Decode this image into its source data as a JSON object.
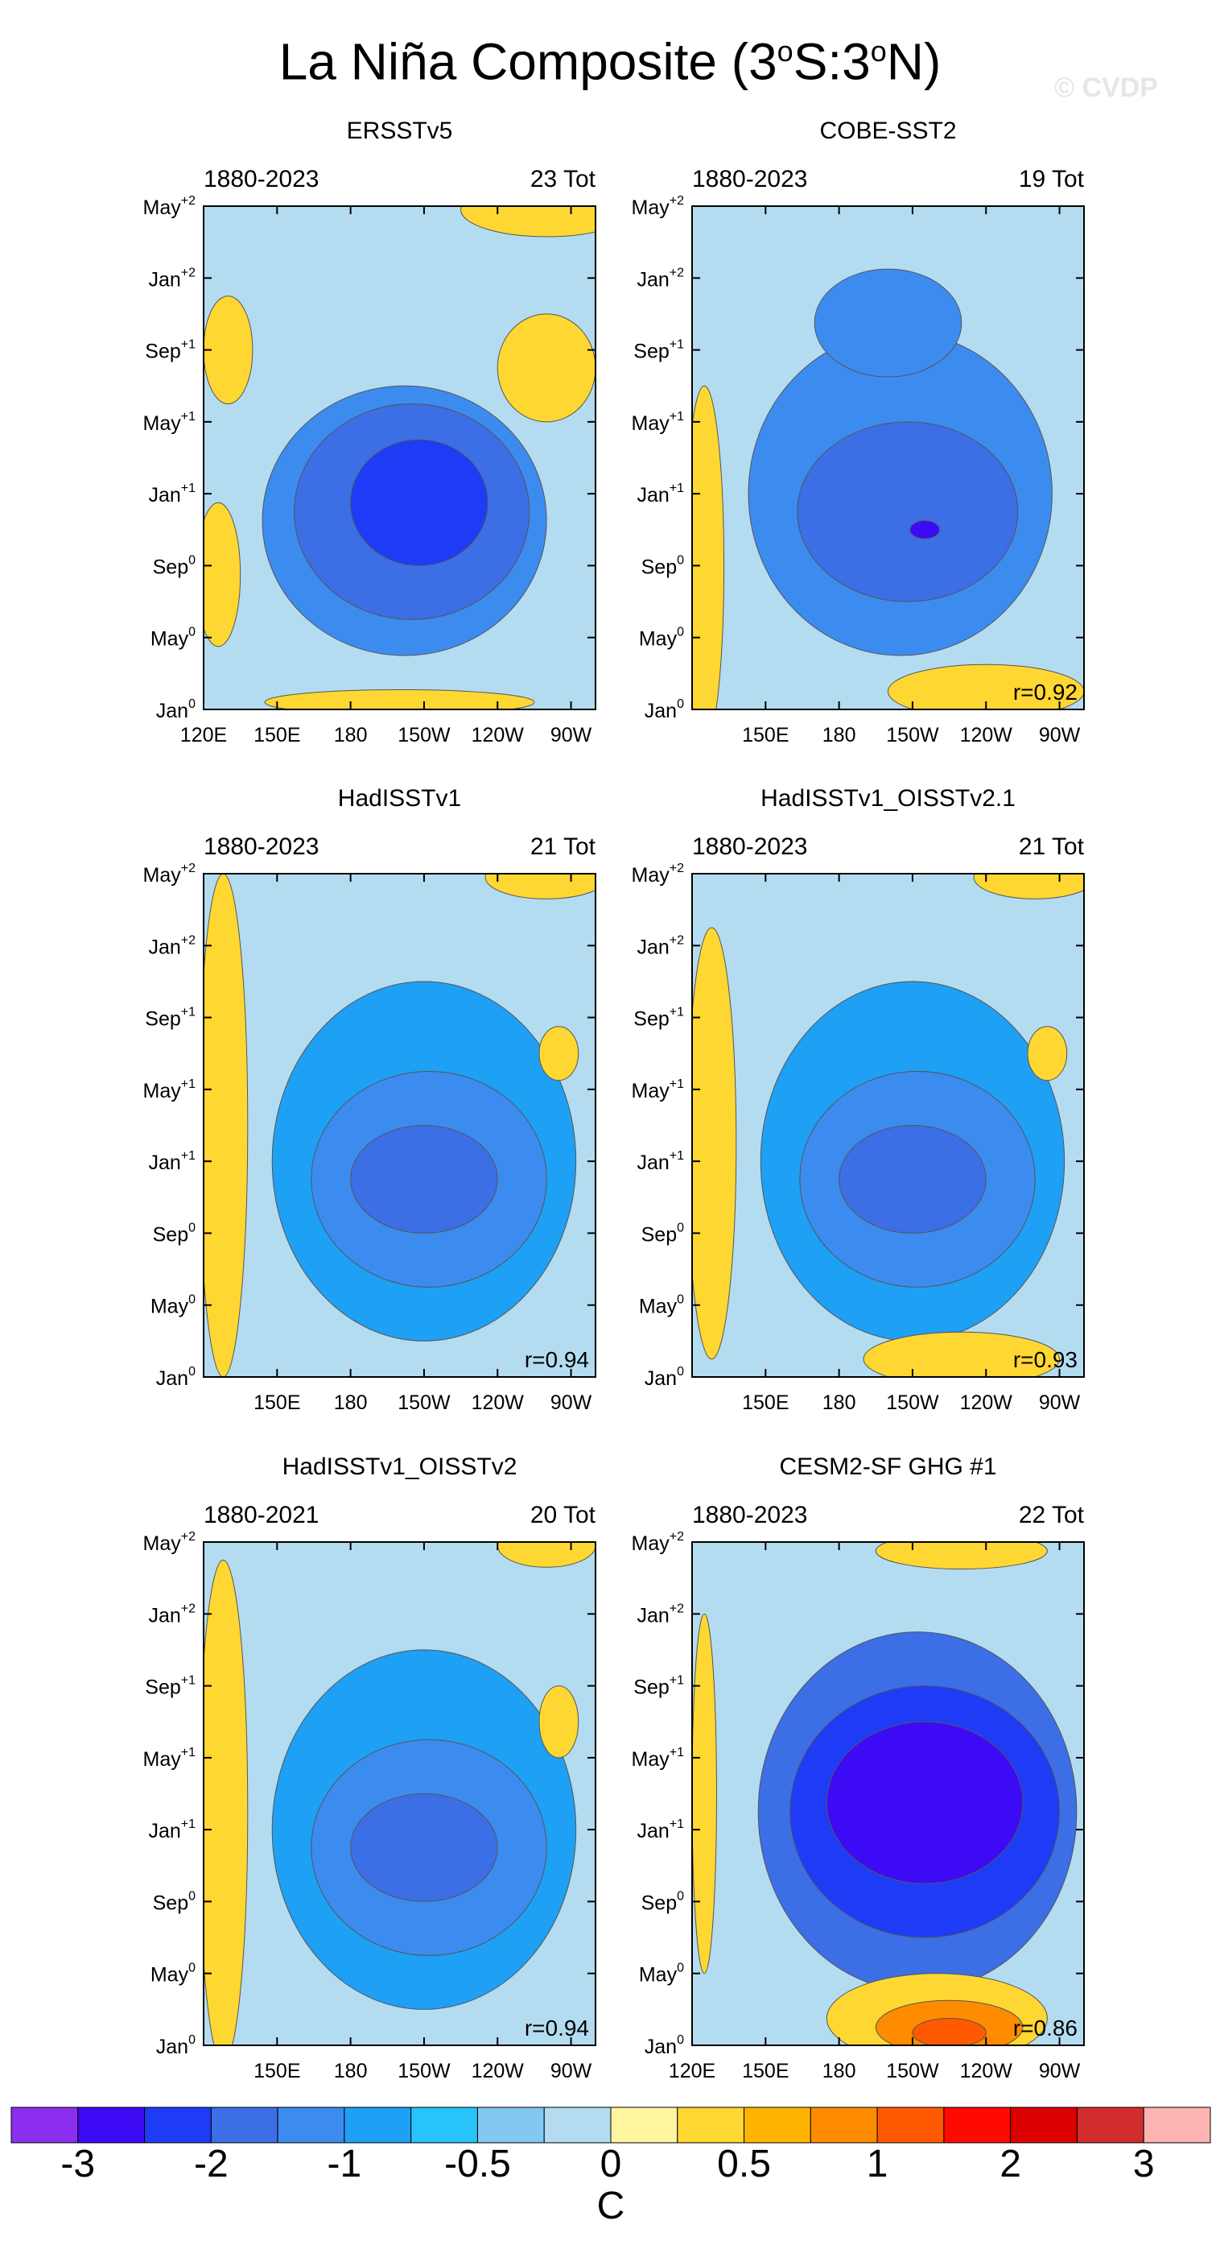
{
  "figure": {
    "title_main": "La Niña Composite (3",
    "title_sup1": "o",
    "title_mid": "S:3",
    "title_sup2": "o",
    "title_end": "N)",
    "watermark": "© CVDP"
  },
  "chart_data": [
    {
      "type": "heatmap",
      "title": "ERSSTv5",
      "period": "1880-2023",
      "count_label": "23 Tot",
      "r": null,
      "x_ticks": [
        "120E",
        "150E",
        "180",
        "150W",
        "120W",
        "90W"
      ],
      "y_ticks": [
        {
          "m": "Jan",
          "e": "0"
        },
        {
          "m": "May",
          "e": "0"
        },
        {
          "m": "Sep",
          "e": "0"
        },
        {
          "m": "Jan",
          "e": "+1"
        },
        {
          "m": "May",
          "e": "+1"
        },
        {
          "m": "Sep",
          "e": "+1"
        },
        {
          "m": "Jan",
          "e": "+2"
        },
        {
          "m": "May",
          "e": "+2"
        }
      ],
      "lon_range": [
        120,
        280
      ],
      "month_range": [
        0,
        28
      ],
      "base_value": -0.25,
      "features": [
        {
          "lon": 202,
          "month": 10.5,
          "rx": 58,
          "ry": 7.5,
          "value": -1.1
        },
        {
          "lon": 205,
          "month": 11,
          "rx": 48,
          "ry": 6,
          "value": -1.5
        },
        {
          "lon": 208,
          "month": 11.5,
          "rx": 28,
          "ry": 3.5,
          "value": -1.9
        },
        {
          "lon": 260,
          "month": 19,
          "rx": 20,
          "ry": 3,
          "value": 0.3
        },
        {
          "lon": 126,
          "month": 7.5,
          "rx": 9,
          "ry": 4,
          "value": 0.3
        },
        {
          "lon": 130,
          "month": 20,
          "rx": 10,
          "ry": 3,
          "value": 0.3
        },
        {
          "lon": 260,
          "month": 27.8,
          "rx": 35,
          "ry": 1.5,
          "value": 0.3
        },
        {
          "lon": 200,
          "month": 0.4,
          "rx": 55,
          "ry": 0.7,
          "value": 0.3
        }
      ]
    },
    {
      "type": "heatmap",
      "title": "COBE-SST2",
      "period": "1880-2023",
      "count_label": "19 Tot",
      "r": "r=0.92",
      "x_ticks": [
        "150E",
        "180",
        "150W",
        "120W",
        "90W"
      ],
      "y_ticks": [
        {
          "m": "Jan",
          "e": "0"
        },
        {
          "m": "May",
          "e": "0"
        },
        {
          "m": "Sep",
          "e": "0"
        },
        {
          "m": "Jan",
          "e": "+1"
        },
        {
          "m": "May",
          "e": "+1"
        },
        {
          "m": "Sep",
          "e": "+1"
        },
        {
          "m": "Jan",
          "e": "+2"
        },
        {
          "m": "May",
          "e": "+2"
        }
      ],
      "lon_range": [
        120,
        280
      ],
      "month_range": [
        0,
        28
      ],
      "base_value": -0.25,
      "features": [
        {
          "lon": 205,
          "month": 12,
          "rx": 62,
          "ry": 9,
          "value": -1.1
        },
        {
          "lon": 208,
          "month": 11,
          "rx": 45,
          "ry": 5,
          "value": -1.5
        },
        {
          "lon": 215,
          "month": 10,
          "rx": 6,
          "ry": 0.5,
          "value": -2.2
        },
        {
          "lon": 200,
          "month": 21.5,
          "rx": 30,
          "ry": 3,
          "value": -1.1
        },
        {
          "lon": 125,
          "month": 8,
          "rx": 8,
          "ry": 10,
          "value": 0.3
        },
        {
          "lon": 240,
          "month": 1,
          "rx": 40,
          "ry": 1.5,
          "value": 0.3
        }
      ]
    },
    {
      "type": "heatmap",
      "title": "HadISSTv1",
      "period": "1880-2023",
      "count_label": "21 Tot",
      "r": "r=0.94",
      "x_ticks": [
        "150E",
        "180",
        "150W",
        "120W",
        "90W"
      ],
      "y_ticks": [
        {
          "m": "Jan",
          "e": "0"
        },
        {
          "m": "May",
          "e": "0"
        },
        {
          "m": "Sep",
          "e": "0"
        },
        {
          "m": "Jan",
          "e": "+1"
        },
        {
          "m": "May",
          "e": "+1"
        },
        {
          "m": "Sep",
          "e": "+1"
        },
        {
          "m": "Jan",
          "e": "+2"
        },
        {
          "m": "May",
          "e": "+2"
        }
      ],
      "lon_range": [
        120,
        280
      ],
      "month_range": [
        0,
        28
      ],
      "base_value": -0.25,
      "features": [
        {
          "lon": 210,
          "month": 12,
          "rx": 62,
          "ry": 10,
          "value": -0.9
        },
        {
          "lon": 212,
          "month": 11,
          "rx": 48,
          "ry": 6,
          "value": -1.2
        },
        {
          "lon": 210,
          "month": 11,
          "rx": 30,
          "ry": 3,
          "value": -1.5
        },
        {
          "lon": 128,
          "month": 14,
          "rx": 10,
          "ry": 14,
          "value": 0.3
        },
        {
          "lon": 265,
          "month": 18,
          "rx": 8,
          "ry": 1.5,
          "value": 0.3
        },
        {
          "lon": 260,
          "month": 27.8,
          "rx": 25,
          "ry": 1.2,
          "value": 0.3
        }
      ]
    },
    {
      "type": "heatmap",
      "title": "HadISSTv1_OISSTv2.1",
      "period": "1880-2023",
      "count_label": "21 Tot",
      "r": "r=0.93",
      "x_ticks": [
        "150E",
        "180",
        "150W",
        "120W",
        "90W"
      ],
      "y_ticks": [
        {
          "m": "Jan",
          "e": "0"
        },
        {
          "m": "May",
          "e": "0"
        },
        {
          "m": "Sep",
          "e": "0"
        },
        {
          "m": "Jan",
          "e": "+1"
        },
        {
          "m": "May",
          "e": "+1"
        },
        {
          "m": "Sep",
          "e": "+1"
        },
        {
          "m": "Jan",
          "e": "+2"
        },
        {
          "m": "May",
          "e": "+2"
        }
      ],
      "lon_range": [
        120,
        280
      ],
      "month_range": [
        0,
        28
      ],
      "base_value": -0.25,
      "features": [
        {
          "lon": 210,
          "month": 12,
          "rx": 62,
          "ry": 10,
          "value": -0.9
        },
        {
          "lon": 212,
          "month": 11,
          "rx": 48,
          "ry": 6,
          "value": -1.2
        },
        {
          "lon": 210,
          "month": 11,
          "rx": 30,
          "ry": 3,
          "value": -1.5
        },
        {
          "lon": 128,
          "month": 13,
          "rx": 10,
          "ry": 12,
          "value": 0.3
        },
        {
          "lon": 265,
          "month": 18,
          "rx": 8,
          "ry": 1.5,
          "value": 0.3
        },
        {
          "lon": 230,
          "month": 1,
          "rx": 40,
          "ry": 1.5,
          "value": 0.3
        },
        {
          "lon": 260,
          "month": 27.8,
          "rx": 25,
          "ry": 1.2,
          "value": 0.3
        }
      ]
    },
    {
      "type": "heatmap",
      "title": "HadISSTv1_OISSTv2",
      "period": "1880-2021",
      "count_label": "20 Tot",
      "r": "r=0.94",
      "x_ticks": [
        "150E",
        "180",
        "150W",
        "120W",
        "90W"
      ],
      "y_ticks": [
        {
          "m": "Jan",
          "e": "0"
        },
        {
          "m": "May",
          "e": "0"
        },
        {
          "m": "Sep",
          "e": "0"
        },
        {
          "m": "Jan",
          "e": "+1"
        },
        {
          "m": "May",
          "e": "+1"
        },
        {
          "m": "Sep",
          "e": "+1"
        },
        {
          "m": "Jan",
          "e": "+2"
        },
        {
          "m": "May",
          "e": "+2"
        }
      ],
      "lon_range": [
        120,
        280
      ],
      "month_range": [
        0,
        28
      ],
      "base_value": -0.25,
      "features": [
        {
          "lon": 210,
          "month": 12,
          "rx": 62,
          "ry": 10,
          "value": -0.9
        },
        {
          "lon": 212,
          "month": 11,
          "rx": 48,
          "ry": 6,
          "value": -1.2
        },
        {
          "lon": 210,
          "month": 11,
          "rx": 30,
          "ry": 3,
          "value": -1.5
        },
        {
          "lon": 128,
          "month": 13,
          "rx": 10,
          "ry": 14,
          "value": 0.3
        },
        {
          "lon": 265,
          "month": 18,
          "rx": 8,
          "ry": 2,
          "value": 0.3
        },
        {
          "lon": 260,
          "month": 27.8,
          "rx": 20,
          "ry": 1.2,
          "value": 0.3
        }
      ]
    },
    {
      "type": "heatmap",
      "title": "CESM2-SF GHG #1",
      "period": "1880-2023",
      "count_label": "22 Tot",
      "r": "r=0.86",
      "x_ticks": [
        "120E",
        "150E",
        "180",
        "150W",
        "120W",
        "90W"
      ],
      "y_ticks": [
        {
          "m": "Jan",
          "e": "0"
        },
        {
          "m": "May",
          "e": "0"
        },
        {
          "m": "Sep",
          "e": "0"
        },
        {
          "m": "Jan",
          "e": "+1"
        },
        {
          "m": "May",
          "e": "+1"
        },
        {
          "m": "Sep",
          "e": "+1"
        },
        {
          "m": "Jan",
          "e": "+2"
        },
        {
          "m": "May",
          "e": "+2"
        }
      ],
      "lon_range": [
        120,
        280
      ],
      "month_range": [
        0,
        28
      ],
      "base_value": -0.25,
      "features": [
        {
          "lon": 212,
          "month": 13,
          "rx": 65,
          "ry": 10,
          "value": -1.3
        },
        {
          "lon": 215,
          "month": 13,
          "rx": 55,
          "ry": 7,
          "value": -1.9
        },
        {
          "lon": 215,
          "month": 13.5,
          "rx": 40,
          "ry": 4.5,
          "value": -2.2
        },
        {
          "lon": 220,
          "month": 1.5,
          "rx": 45,
          "ry": 2.5,
          "value": 0.4
        },
        {
          "lon": 225,
          "month": 1,
          "rx": 30,
          "ry": 1.5,
          "value": 0.8
        },
        {
          "lon": 225,
          "month": 0.7,
          "rx": 15,
          "ry": 0.8,
          "value": 1.1
        },
        {
          "lon": 125,
          "month": 14,
          "rx": 5,
          "ry": 10,
          "value": 0.4
        },
        {
          "lon": 230,
          "month": 27.5,
          "rx": 35,
          "ry": 1,
          "value": 0.3
        }
      ]
    }
  ],
  "colorbar": {
    "colors": [
      "#8c2ef0",
      "#3c0af5",
      "#1e3cf5",
      "#3c6ee6",
      "#3c8cf0",
      "#1ea0f5",
      "#28c3fa",
      "#82c8f0",
      "#b4dcf0",
      "#fff5a0",
      "#ffd732",
      "#ffb400",
      "#ff8c00",
      "#ff5a00",
      "#ff0a00",
      "#dc0000",
      "#d22d2d",
      "#ffb4b4"
    ],
    "thresholds": [
      -3,
      -2.5,
      -2,
      -1.5,
      -1.25,
      -1,
      -0.75,
      -0.5,
      -0.25,
      0,
      0.25,
      0.5,
      0.75,
      1,
      1.5,
      2,
      2.5,
      3
    ],
    "labels": [
      "-3",
      "-2",
      "-1",
      "-0.5",
      "0",
      "0.5",
      "1",
      "2",
      "3"
    ],
    "label_indices": [
      1,
      3,
      5,
      7,
      9,
      11,
      13,
      15,
      17
    ],
    "units": "C"
  }
}
